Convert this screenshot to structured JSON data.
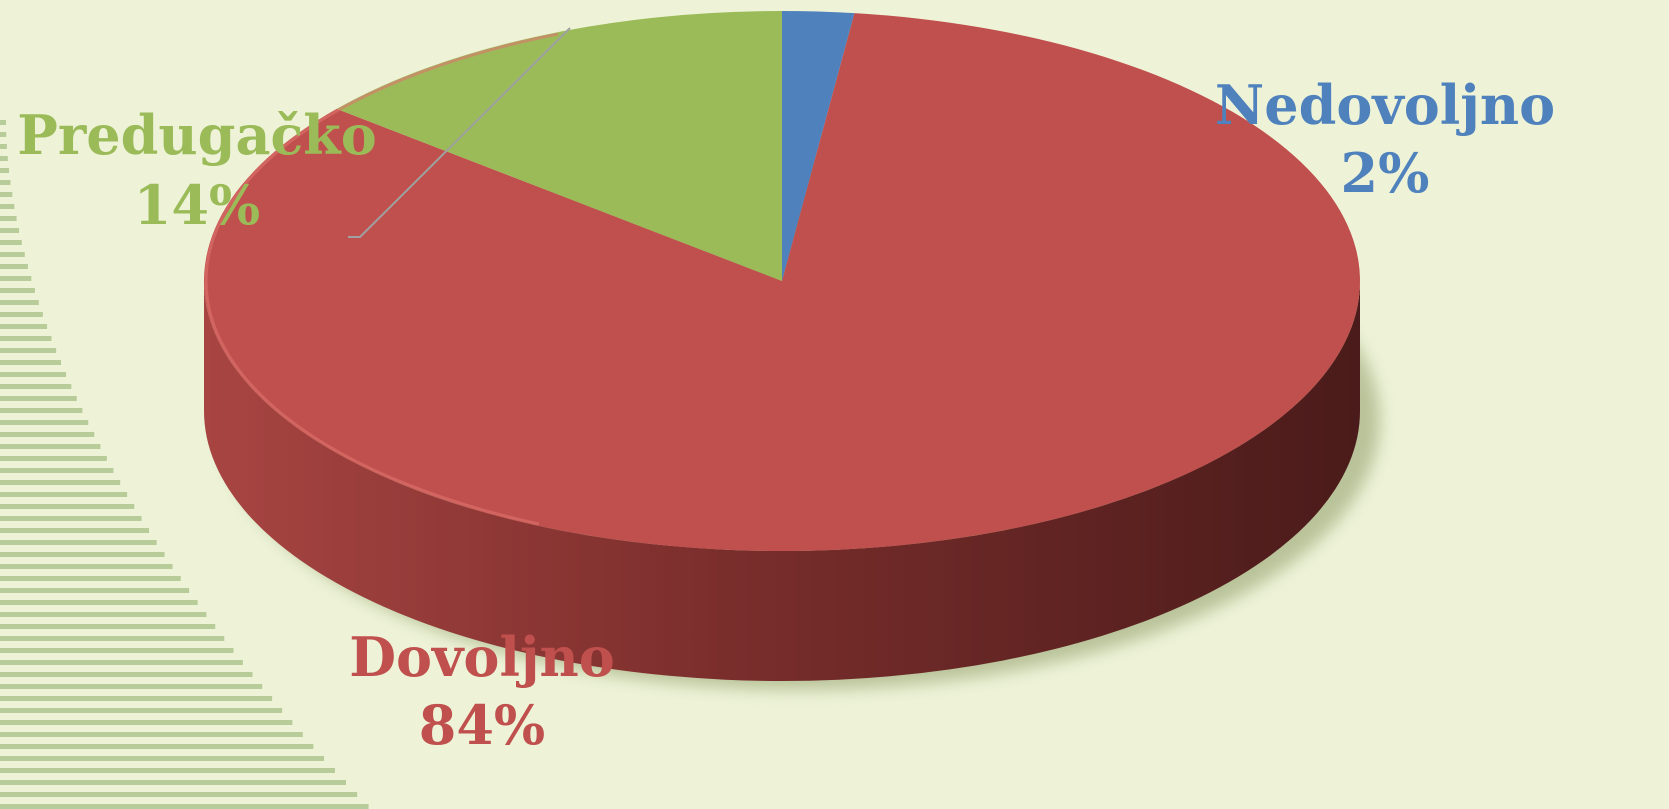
{
  "chart_data": {
    "type": "pie",
    "categories": [
      "Nedovoljno",
      "Dovoljno",
      "Predugačko"
    ],
    "values": [
      2,
      84,
      14
    ],
    "value_labels": [
      "2%",
      "84%",
      "14%"
    ],
    "colors": [
      "#4f81bd",
      "#c0504d",
      "#9bbb59"
    ]
  }
}
